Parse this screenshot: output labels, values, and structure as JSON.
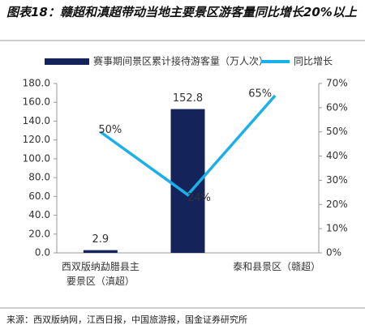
{
  "chart_data": {
    "type": "bar_line",
    "title": "图表18：赣超和滇超带动当地主要景区游客量同比增长20%以上",
    "categories": [
      "西双版纳勐腊县主要景区（滇超）",
      null,
      "泰和县景区（赣超）"
    ],
    "series": [
      {
        "name": "赛事期间景区累计接待游客量（万人次）",
        "type": "bar",
        "color": "#14235a",
        "values": [
          2.9,
          152.8,
          null
        ]
      },
      {
        "name": "同比增长",
        "type": "line",
        "axis": "y2",
        "color": "#1cb0e8",
        "values": [
          50,
          24,
          65
        ],
        "value_labels": [
          "50%",
          "24%",
          "65%"
        ]
      }
    ],
    "ylim": [
      0,
      180
    ],
    "yticks": [
      {
        "value": 0,
        "label": "0.0"
      },
      {
        "value": 20,
        "label": "20.0"
      },
      {
        "value": 40,
        "label": "40.0"
      },
      {
        "value": 60,
        "label": "60.0"
      },
      {
        "value": 80,
        "label": "80.0"
      },
      {
        "value": 100,
        "label": "100.0"
      },
      {
        "value": 120,
        "label": "120.0"
      },
      {
        "value": 140,
        "label": "140.0"
      },
      {
        "value": 160,
        "label": "160.0"
      },
      {
        "value": 180,
        "label": "180.0"
      }
    ],
    "y2lim": [
      0,
      70
    ],
    "y2ticks": [
      {
        "value": 0,
        "label": "0%"
      },
      {
        "value": 10,
        "label": "10%"
      },
      {
        "value": 20,
        "label": "20%"
      },
      {
        "value": 30,
        "label": "30%"
      },
      {
        "value": 40,
        "label": "40%"
      },
      {
        "value": 50,
        "label": "50%"
      },
      {
        "value": 60,
        "label": "60%"
      },
      {
        "value": 70,
        "label": "70%"
      }
    ],
    "source": "来源：西双版纳网，江西日报，中国旅游报，国金证券研究所"
  }
}
